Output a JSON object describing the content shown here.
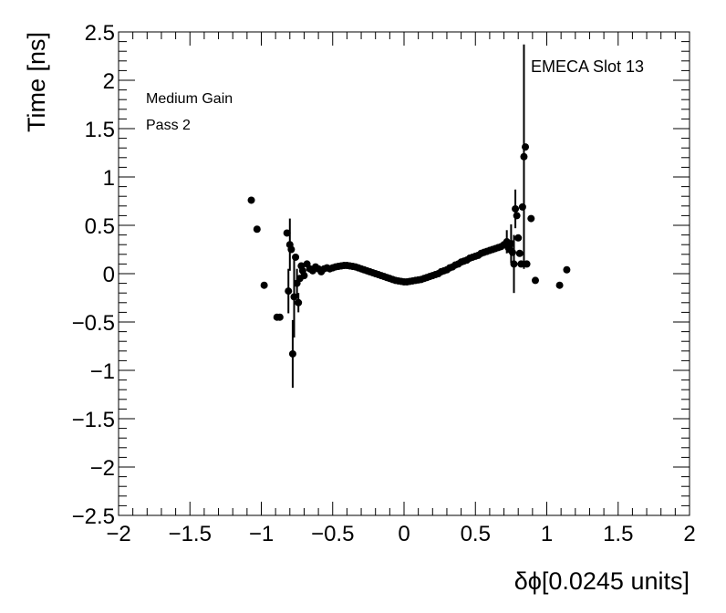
{
  "chart_data": {
    "type": "scatter",
    "title": "",
    "xlabel": "δϕ[0.0245 units]",
    "ylabel": "Time [ns]",
    "xlim": [
      -2,
      2
    ],
    "ylim": [
      -2.5,
      2.5
    ],
    "x_ticks": [
      "−2",
      "−1.5",
      "−1",
      "−0.5",
      "0",
      "0.5",
      "1",
      "1.5",
      "2"
    ],
    "y_ticks": [
      "2.5",
      "2",
      "1.5",
      "1",
      "0.5",
      "0",
      "−0.5",
      "−1",
      "−1.5",
      "−2",
      "−2.5"
    ],
    "grid": false,
    "annotations": {
      "gain": "Medium Gain",
      "pass": "Pass 2",
      "slot": "EMECA Slot 13"
    },
    "marker_color": "#000000",
    "series": [
      {
        "points": [
          {
            "x": -1.07,
            "y": 0.76
          },
          {
            "x": -1.03,
            "y": 0.46
          },
          {
            "x": -0.98,
            "y": -0.12
          },
          {
            "x": -0.89,
            "y": -0.45
          },
          {
            "x": -0.87,
            "y": -0.45
          },
          {
            "x": -0.82,
            "y": 0.42
          },
          {
            "x": -0.81,
            "y": -0.18,
            "err": 0.23
          },
          {
            "x": -0.8,
            "y": 0.3,
            "err": 0.27
          },
          {
            "x": -0.79,
            "y": 0.25
          },
          {
            "x": -0.78,
            "y": -0.83,
            "err": 0.35
          },
          {
            "x": -0.77,
            "y": -0.24,
            "err": 0.42
          },
          {
            "x": -0.76,
            "y": 0.17
          },
          {
            "x": -0.75,
            "y": -0.1,
            "err": 0.15
          },
          {
            "x": -0.74,
            "y": -0.3,
            "err": 0.1
          },
          {
            "x": -0.73,
            "y": -0.05
          },
          {
            "x": -0.72,
            "y": 0.08
          },
          {
            "x": -0.71,
            "y": 0.03
          },
          {
            "x": -0.7,
            "y": -0.02
          },
          {
            "x": -0.68,
            "y": 0.1
          },
          {
            "x": -0.66,
            "y": 0.05
          },
          {
            "x": -0.64,
            "y": 0.03
          },
          {
            "x": -0.62,
            "y": 0.07
          },
          {
            "x": -0.6,
            "y": 0.05
          },
          {
            "x": -0.58,
            "y": 0.02
          },
          {
            "x": -0.56,
            "y": 0.05
          },
          {
            "x": -0.54,
            "y": 0.06
          },
          {
            "x": -0.52,
            "y": 0.05
          },
          {
            "x": -0.5,
            "y": 0.06
          },
          {
            "x": -0.48,
            "y": 0.07
          },
          {
            "x": -0.46,
            "y": 0.075
          },
          {
            "x": -0.44,
            "y": 0.08
          },
          {
            "x": -0.42,
            "y": 0.085
          },
          {
            "x": -0.4,
            "y": 0.085
          },
          {
            "x": -0.38,
            "y": 0.08
          },
          {
            "x": -0.36,
            "y": 0.075
          },
          {
            "x": -0.34,
            "y": 0.07
          },
          {
            "x": -0.32,
            "y": 0.06
          },
          {
            "x": -0.3,
            "y": 0.05
          },
          {
            "x": -0.28,
            "y": 0.04
          },
          {
            "x": -0.26,
            "y": 0.03
          },
          {
            "x": -0.24,
            "y": 0.02
          },
          {
            "x": -0.22,
            "y": 0.01
          },
          {
            "x": -0.2,
            "y": 0.0
          },
          {
            "x": -0.18,
            "y": -0.01
          },
          {
            "x": -0.16,
            "y": -0.02
          },
          {
            "x": -0.14,
            "y": -0.03
          },
          {
            "x": -0.12,
            "y": -0.04
          },
          {
            "x": -0.1,
            "y": -0.05
          },
          {
            "x": -0.08,
            "y": -0.06
          },
          {
            "x": -0.06,
            "y": -0.07
          },
          {
            "x": -0.04,
            "y": -0.075
          },
          {
            "x": -0.02,
            "y": -0.08
          },
          {
            "x": 0.0,
            "y": -0.085
          },
          {
            "x": 0.02,
            "y": -0.085
          },
          {
            "x": 0.04,
            "y": -0.08
          },
          {
            "x": 0.06,
            "y": -0.075
          },
          {
            "x": 0.08,
            "y": -0.07
          },
          {
            "x": 0.1,
            "y": -0.065
          },
          {
            "x": 0.12,
            "y": -0.06
          },
          {
            "x": 0.14,
            "y": -0.05
          },
          {
            "x": 0.16,
            "y": -0.04
          },
          {
            "x": 0.18,
            "y": -0.03
          },
          {
            "x": 0.2,
            "y": -0.02
          },
          {
            "x": 0.22,
            "y": -0.01
          },
          {
            "x": 0.24,
            "y": 0.0
          },
          {
            "x": 0.26,
            "y": 0.02
          },
          {
            "x": 0.28,
            "y": 0.03
          },
          {
            "x": 0.3,
            "y": 0.04
          },
          {
            "x": 0.32,
            "y": 0.06
          },
          {
            "x": 0.34,
            "y": 0.07
          },
          {
            "x": 0.36,
            "y": 0.09
          },
          {
            "x": 0.38,
            "y": 0.1
          },
          {
            "x": 0.4,
            "y": 0.12
          },
          {
            "x": 0.42,
            "y": 0.13
          },
          {
            "x": 0.44,
            "y": 0.14
          },
          {
            "x": 0.46,
            "y": 0.16
          },
          {
            "x": 0.48,
            "y": 0.17
          },
          {
            "x": 0.5,
            "y": 0.18
          },
          {
            "x": 0.52,
            "y": 0.19
          },
          {
            "x": 0.54,
            "y": 0.21
          },
          {
            "x": 0.56,
            "y": 0.22
          },
          {
            "x": 0.58,
            "y": 0.23
          },
          {
            "x": 0.6,
            "y": 0.24
          },
          {
            "x": 0.62,
            "y": 0.25
          },
          {
            "x": 0.64,
            "y": 0.26
          },
          {
            "x": 0.66,
            "y": 0.27
          },
          {
            "x": 0.68,
            "y": 0.28
          },
          {
            "x": 0.7,
            "y": 0.3
          },
          {
            "x": 0.72,
            "y": 0.33,
            "err": 0.12
          },
          {
            "x": 0.73,
            "y": 0.27
          },
          {
            "x": 0.74,
            "y": 0.25
          },
          {
            "x": 0.75,
            "y": 0.31,
            "err": 0.2
          },
          {
            "x": 0.76,
            "y": 0.22
          },
          {
            "x": 0.77,
            "y": 0.1,
            "err": 0.3
          },
          {
            "x": 0.78,
            "y": 0.67,
            "err": 0.2
          },
          {
            "x": 0.79,
            "y": 0.6
          },
          {
            "x": 0.8,
            "y": 0.37
          },
          {
            "x": 0.81,
            "y": 0.21
          },
          {
            "x": 0.82,
            "y": 0.1
          },
          {
            "x": 0.83,
            "y": 0.69
          },
          {
            "x": 0.84,
            "y": 1.21,
            "err": 1.16
          },
          {
            "x": 0.85,
            "y": 1.31
          },
          {
            "x": 0.86,
            "y": 0.1
          },
          {
            "x": 0.89,
            "y": 0.57
          },
          {
            "x": 0.92,
            "y": -0.07
          },
          {
            "x": 1.09,
            "y": -0.12
          },
          {
            "x": 1.14,
            "y": 0.04
          }
        ]
      }
    ]
  }
}
